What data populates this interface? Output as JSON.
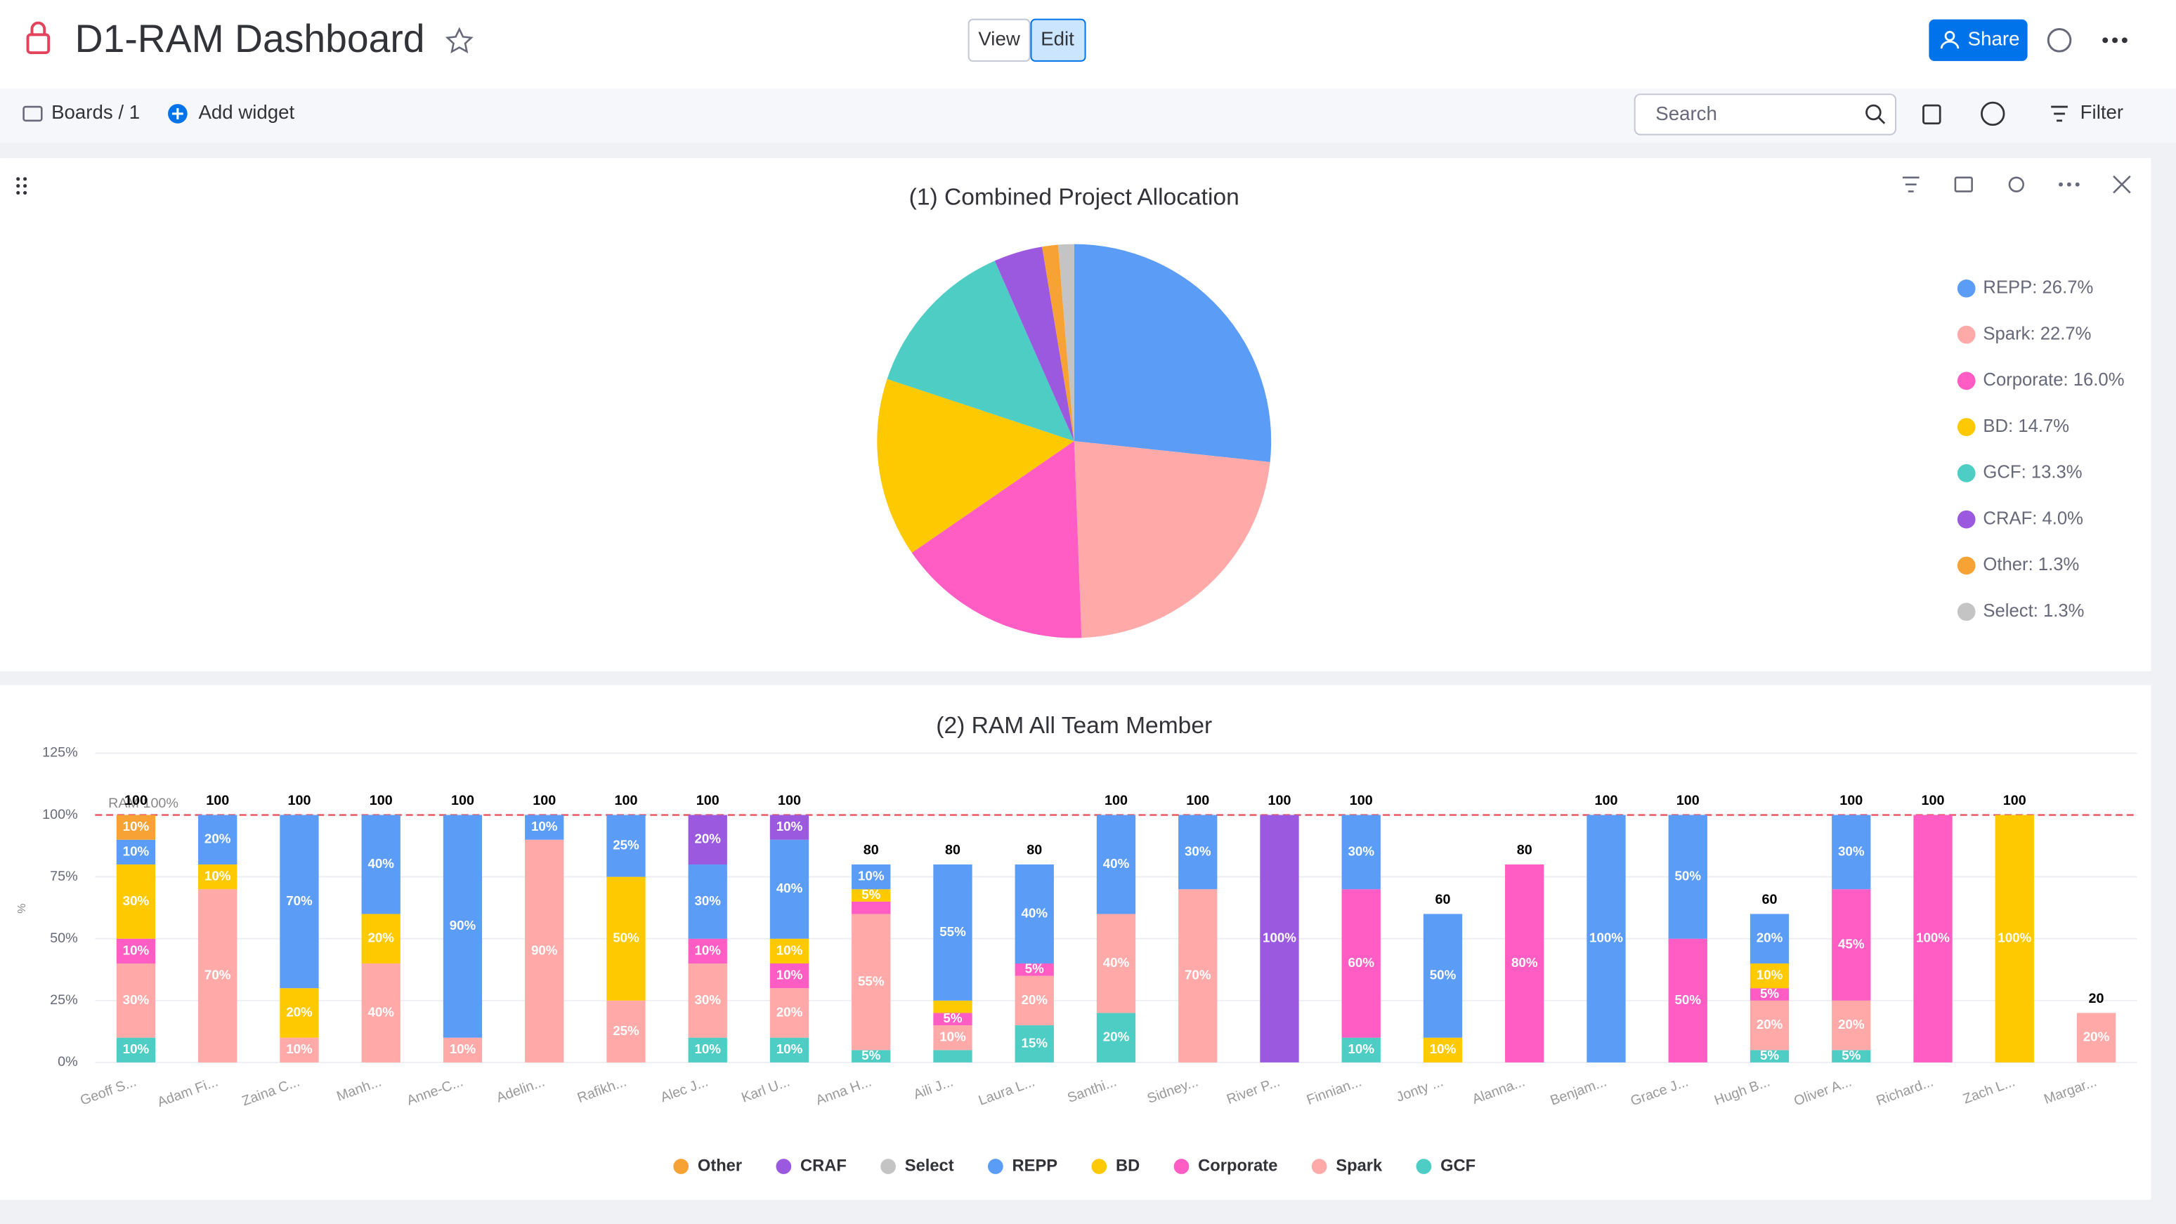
{
  "header": {
    "title": "D1-RAM Dashboard",
    "view": "View",
    "edit": "Edit",
    "share": "Share"
  },
  "toolbar": {
    "boards": "Boards / 1",
    "add_widget": "Add widget",
    "search": "Search",
    "filter": "Filter"
  },
  "chart_data": [
    {
      "type": "pie",
      "title": "(1) Combined Project Allocation",
      "categories": [
        "REPP",
        "Spark",
        "Corporate",
        "BD",
        "GCF",
        "CRAF",
        "Other",
        "Select"
      ],
      "values": [
        26.7,
        22.7,
        16.0,
        14.7,
        13.3,
        4.0,
        1.3,
        1.3
      ],
      "legend_labels": [
        "REPP: 26.7%",
        "Spark: 22.7%",
        "Corporate: 16.0%",
        "BD: 14.7%",
        "GCF: 13.3%",
        "CRAF: 4.0%",
        "Other: 1.3%",
        "Select: 1.3%"
      ],
      "colors": [
        "#5b9cf6",
        "#ffaaa8",
        "#ff5cc4",
        "#ffc900",
        "#4ecdc4",
        "#9b59e0",
        "#f7a234",
        "#c4c4c4"
      ],
      "legend": "right"
    },
    {
      "type": "stacked-bar",
      "title": "(2) RAM All Team Member",
      "y_label": "%",
      "categories": [
        "Geoff S...",
        "Adam Fi...",
        "Zaina C...",
        "Manh...",
        "Anne-C...",
        "Adelin...",
        "Rafikh...",
        "Alec J...",
        "Karl U...",
        "Anna H...",
        "Aili J...",
        "Laura L...",
        "Santhi...",
        "Sidney...",
        "River P...",
        "Finnian...",
        "Jonty ...",
        "Alanna...",
        "Benjam...",
        "Grace J...",
        "Hugh B...",
        "Oliver A...",
        "Richard...",
        "Zach L...",
        "Margar..."
      ],
      "series": [
        {
          "name": "Other",
          "color": "#f7a234",
          "values": [
            10,
            0,
            0,
            0,
            0,
            0,
            0,
            0,
            0,
            0,
            0,
            0,
            0,
            0,
            0,
            0,
            0,
            0,
            0,
            0,
            0,
            0,
            0,
            0,
            0
          ],
          "value_labels": [
            "10%",
            null,
            null,
            null,
            null,
            null,
            null,
            null,
            null,
            null,
            null,
            null,
            null,
            null,
            null,
            null,
            null,
            null,
            null,
            null,
            null,
            null,
            null,
            null,
            null
          ]
        },
        {
          "name": "CRAF",
          "color": "#9b59e0",
          "values": [
            0,
            0,
            0,
            0,
            0,
            0,
            0,
            20,
            10,
            0,
            0,
            0,
            0,
            0,
            100,
            0,
            0,
            0,
            0,
            0,
            0,
            0,
            0,
            0,
            0
          ],
          "value_labels": [
            null,
            null,
            null,
            null,
            null,
            null,
            null,
            "20%",
            "10%",
            null,
            null,
            null,
            null,
            null,
            "100%",
            null,
            null,
            null,
            null,
            null,
            null,
            null,
            null,
            null,
            null
          ]
        },
        {
          "name": "Select",
          "color": "#c4c4c4",
          "values": [
            0,
            0,
            0,
            0,
            0,
            0,
            0,
            0,
            0,
            0,
            0,
            0,
            0,
            0,
            0,
            0,
            0,
            0,
            0,
            0,
            0,
            0,
            0,
            0,
            0
          ],
          "value_labels": [
            null,
            null,
            null,
            null,
            null,
            null,
            null,
            null,
            null,
            null,
            null,
            null,
            null,
            null,
            null,
            null,
            null,
            null,
            null,
            null,
            null,
            null,
            null,
            null,
            null
          ]
        },
        {
          "name": "REPP",
          "color": "#5b9cf6",
          "values": [
            10,
            20,
            70,
            40,
            90,
            10,
            25,
            30,
            40,
            10,
            55,
            40,
            40,
            30,
            0,
            30,
            50,
            0,
            100,
            50,
            20,
            30,
            0,
            0,
            0
          ],
          "value_labels": [
            "10%",
            "20%",
            "70%",
            "40%",
            "90%",
            "10%",
            "25%",
            "30%",
            "40%",
            "10%",
            "55%",
            "40%",
            "40%",
            "30%",
            null,
            "30%",
            "50%",
            null,
            "100%",
            "50%",
            "20%",
            "30%",
            null,
            null,
            null
          ]
        },
        {
          "name": "BD",
          "color": "#ffc900",
          "values": [
            30,
            10,
            20,
            20,
            0,
            0,
            50,
            0,
            10,
            5,
            5,
            0,
            0,
            0,
            0,
            0,
            10,
            0,
            0,
            0,
            10,
            0,
            0,
            100,
            0
          ],
          "value_labels": [
            "30%",
            "10%",
            "20%",
            "20%",
            null,
            null,
            "50%",
            null,
            "10%",
            "5%",
            null,
            null,
            null,
            null,
            null,
            null,
            "10%",
            null,
            null,
            null,
            "10%",
            null,
            null,
            "100%",
            null
          ]
        },
        {
          "name": "Corporate",
          "color": "#ff5cc4",
          "values": [
            10,
            0,
            0,
            0,
            0,
            0,
            0,
            10,
            10,
            5,
            5,
            5,
            0,
            0,
            0,
            60,
            0,
            80,
            0,
            50,
            5,
            45,
            100,
            0,
            0
          ],
          "value_labels": [
            "10%",
            null,
            null,
            null,
            null,
            null,
            null,
            "10%",
            "10%",
            null,
            "5%",
            "5%",
            null,
            null,
            null,
            "60%",
            null,
            "80%",
            null,
            "50%",
            "5%",
            "45%",
            "100%",
            null,
            null
          ]
        },
        {
          "name": "Spark",
          "color": "#ffaaa8",
          "values": [
            30,
            70,
            10,
            40,
            10,
            90,
            25,
            30,
            20,
            55,
            10,
            20,
            40,
            70,
            0,
            0,
            0,
            0,
            0,
            0,
            20,
            20,
            0,
            0,
            20
          ],
          "value_labels": [
            "30%",
            "70%",
            "10%",
            "40%",
            "10%",
            "90%",
            "25%",
            "30%",
            "20%",
            "55%",
            "10%",
            "20%",
            "40%",
            "70%",
            null,
            null,
            null,
            null,
            null,
            null,
            "20%",
            "20%",
            null,
            null,
            "20%"
          ]
        },
        {
          "name": "GCF",
          "color": "#4ecdc4",
          "values": [
            10,
            0,
            0,
            0,
            0,
            0,
            0,
            10,
            10,
            5,
            5,
            15,
            20,
            0,
            0,
            10,
            0,
            0,
            0,
            0,
            5,
            5,
            0,
            0,
            0
          ],
          "value_labels": [
            "10%",
            null,
            null,
            null,
            null,
            null,
            null,
            "10%",
            "10%",
            "5%",
            null,
            "15%",
            "20%",
            null,
            null,
            "10%",
            null,
            null,
            null,
            null,
            "5%",
            "5%",
            null,
            null,
            null
          ]
        }
      ],
      "totals": [
        100,
        100,
        100,
        100,
        100,
        100,
        100,
        100,
        100,
        80,
        80,
        80,
        100,
        100,
        100,
        100,
        60,
        80,
        100,
        100,
        60,
        100,
        100,
        100,
        20
      ],
      "ylim": [
        0,
        125
      ],
      "yticks": [
        {
          "value": 0,
          "label": "0%"
        },
        {
          "value": 25,
          "label": "25%"
        },
        {
          "value": 50,
          "label": "50%"
        },
        {
          "value": 75,
          "label": "75%"
        },
        {
          "value": 100,
          "label": "100%"
        },
        {
          "value": 125,
          "label": "125%"
        }
      ],
      "reference_line": {
        "value": 100,
        "label": "RAM 100%",
        "color": "#e8505b"
      },
      "grid": true,
      "legend": "bottom"
    }
  ]
}
